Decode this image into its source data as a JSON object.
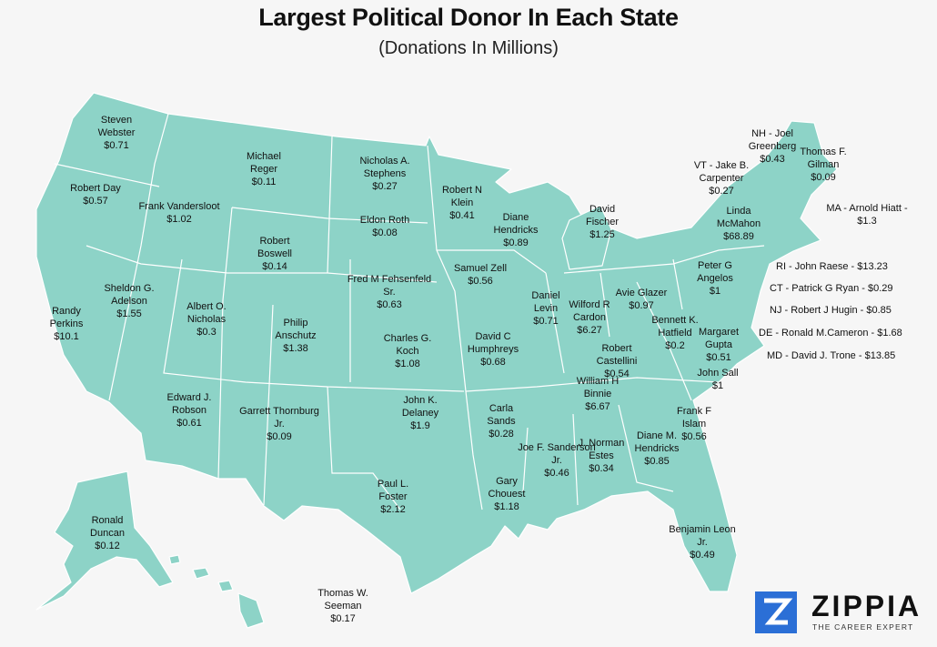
{
  "header": {
    "title": "Largest Political Donor In Each State",
    "subtitle": "(Donations In Millions)"
  },
  "states": [
    {
      "name": "Steven Webster",
      "amount": "$0.71"
    },
    {
      "name": "Robert Day",
      "amount": "$0.57"
    },
    {
      "name": "Randy Perkins",
      "amount": "$10.1"
    },
    {
      "name": "Frank Vandersloot",
      "amount": "$1.02"
    },
    {
      "name": "Sheldon G. Adelson",
      "amount": "$1.55"
    },
    {
      "name": "Michael Reger",
      "amount": "$0.11"
    },
    {
      "name": "Robert Boswell",
      "amount": "$0.14"
    },
    {
      "name": "Albert O. Nicholas",
      "amount": "$0.3"
    },
    {
      "name": "Edward J. Robson",
      "amount": "$0.61"
    },
    {
      "name": "Philip Anschutz",
      "amount": "$1.38"
    },
    {
      "name": "Garrett Thornburg Jr.",
      "amount": "$0.09"
    },
    {
      "name": "Nicholas A. Stephens",
      "amount": "$0.27"
    },
    {
      "name": "Eldon Roth",
      "amount": "$0.08"
    },
    {
      "name": "Fred M Fehsenfeld Sr.",
      "amount": "$0.63"
    },
    {
      "name": "Charles G. Koch",
      "amount": "$1.08"
    },
    {
      "name": "John K. Delaney",
      "amount": "$1.9"
    },
    {
      "name": "Paul L. Foster",
      "amount": "$2.12"
    },
    {
      "name": "Robert N Klein",
      "amount": "$0.41"
    },
    {
      "name": "Samuel Zell",
      "amount": "$0.56"
    },
    {
      "name": "David C Humphreys",
      "amount": "$0.68"
    },
    {
      "name": "Carla Sands",
      "amount": "$0.28"
    },
    {
      "name": "Gary Chouest",
      "amount": "$1.18"
    },
    {
      "name": "Diane Hendricks",
      "amount": "$0.89"
    },
    {
      "name": "Daniel Levin",
      "amount": "$0.71"
    },
    {
      "name": "Joe F. Sanderson Jr.",
      "amount": "$0.46"
    },
    {
      "name": "J. Norman Estes",
      "amount": "$0.34"
    },
    {
      "name": "David Fischer",
      "amount": "$1.25"
    },
    {
      "name": "Wilford R Cardon",
      "amount": "$6.27"
    },
    {
      "name": "Avie Glazer",
      "amount": "$0.97"
    },
    {
      "name": "Robert Castellini",
      "amount": "$0.54"
    },
    {
      "name": "William H Binnie",
      "amount": "$6.67"
    },
    {
      "name": "Diane M. Hendricks",
      "amount": "$0.85"
    },
    {
      "name": "Benjamin Leon Jr.",
      "amount": "$0.49"
    },
    {
      "name": "Frank F Islam",
      "amount": "$0.56"
    },
    {
      "name": "John Sall",
      "amount": "$1"
    },
    {
      "name": "Bennett K. Hatfield",
      "amount": "$0.2"
    },
    {
      "name": "Margaret Gupta",
      "amount": "$0.51"
    },
    {
      "name": "Peter G Angelos",
      "amount": "$1"
    },
    {
      "name": "Linda McMahon",
      "amount": "$68.89"
    },
    {
      "name": "Thomas F. Gilman",
      "amount": "$0.09"
    },
    {
      "name": "Ronald Duncan",
      "amount": "$0.12"
    },
    {
      "name": "Thomas W. Seeman",
      "amount": "$0.17"
    },
    {
      "name": "NH - Joel Greenberg",
      "amount": "$0.43"
    },
    {
      "name": "VT - Jake B. Carpenter",
      "amount": "$0.27"
    }
  ],
  "callouts": [
    "MA - Arnold Hiatt - $1.3",
    "RI - John Raese - $13.23",
    "CT - Patrick G Ryan - $0.29",
    "NJ - Robert J Hugin - $0.85",
    "DE - Ronald M.Cameron - $1.68",
    "MD - David J. Trone - $13.85"
  ],
  "logo": {
    "name": "ZIPPIA",
    "tagline": "THE CAREER EXPERT"
  }
}
